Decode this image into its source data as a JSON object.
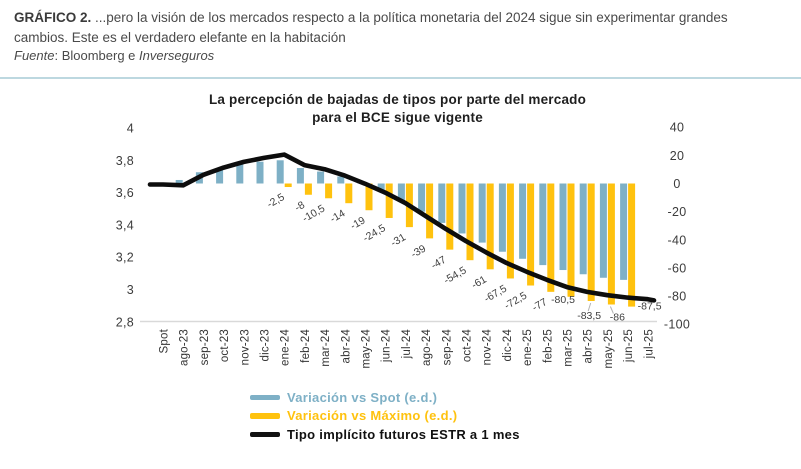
{
  "header": {
    "tag": "GRÁFICO 2.",
    "line1_rest": " ...pero la visión de los mercados respecto a la política monetaria del 2024 sigue sin experimentar grandes",
    "line2": "cambios. Este es el verdadero elefante en la habitación",
    "fuente_label": "Fuente",
    "fuente_mid": ": Bloomberg e ",
    "fuente_source": "Inverseguros"
  },
  "chart_data": {
    "type": "bar",
    "subtype": "combo bar + line, dual axis",
    "title_lines": [
      "La percepción de bajadas de tipos por parte del mercado",
      "para el BCE sigue vigente"
    ],
    "categories": [
      "Spot",
      "ago-23",
      "sep-23",
      "oct-23",
      "nov-23",
      "dic-23",
      "ene-24",
      "feb-24",
      "mar-24",
      "abr-24",
      "may-24",
      "jun-24",
      "jul-24",
      "ago-24",
      "sep-24",
      "oct-24",
      "nov-24",
      "dic-24",
      "ene-25",
      "feb-25",
      "mar-25",
      "abr-25",
      "may-25",
      "jun-25",
      "jul-25"
    ],
    "series": [
      {
        "name": "Variación vs Spot (e.d.)",
        "type": "bar",
        "axis": "right",
        "color": "#7EB0C6",
        "values": [
          null,
          2.5,
          8,
          11,
          13.5,
          15.5,
          16.5,
          11,
          8.5,
          5,
          1,
          -5.5,
          -12,
          -20,
          -28,
          -35.5,
          -42,
          -48.5,
          -53.5,
          -58,
          -61.5,
          -64.5,
          -67,
          -68.5,
          null
        ]
      },
      {
        "name": "Variación vs Máximo (e.d.)",
        "type": "bar",
        "axis": "right",
        "color": "#FFC20E",
        "values": [
          null,
          null,
          null,
          null,
          null,
          null,
          -2.5,
          -8,
          -10.5,
          -14,
          -19,
          -24.5,
          -31,
          -39,
          -47,
          -54.5,
          -61,
          -67.5,
          -72.5,
          -77,
          -80.5,
          -83.5,
          -86,
          -87.5,
          null
        ]
      },
      {
        "name": "Tipo implícito futuros ESTR a 1 mes",
        "type": "line",
        "axis": "left",
        "color": "#0d0d0d",
        "values": [
          3.65,
          3.645,
          3.71,
          3.755,
          3.79,
          3.815,
          3.835,
          3.77,
          3.745,
          3.705,
          3.655,
          3.6,
          3.535,
          3.455,
          3.375,
          3.3,
          3.23,
          3.165,
          3.11,
          3.06,
          3.015,
          2.985,
          2.965,
          2.95,
          2.94
        ]
      }
    ],
    "bar_labels": [
      "-2,5",
      "-8",
      "-10,5",
      "-14",
      "-19",
      "-24,5",
      "-31",
      "-39",
      "-47",
      "-54,5",
      "-61",
      "-67,5",
      "-72,5",
      "-77",
      "-80,5",
      "-83,5",
      "-86",
      "-87,5"
    ],
    "left_axis": {
      "ticks": [
        "4",
        "3,8",
        "3,6",
        "3,4",
        "3,2",
        "3",
        "2,8"
      ],
      "values": [
        4,
        3.8,
        3.6,
        3.4,
        3.2,
        3,
        2.8
      ],
      "range": [
        2.8,
        4
      ]
    },
    "right_axis": {
      "ticks": [
        "40",
        "20",
        "0",
        "-20",
        "-40",
        "-60",
        "-80",
        "-100"
      ],
      "values": [
        40,
        20,
        0,
        -20,
        -40,
        -60,
        -80,
        -100
      ],
      "range": [
        -100,
        40
      ]
    },
    "grid": false,
    "legend_position": "bottom",
    "legend": [
      {
        "label": "Variación vs Spot (e.d.)",
        "color": "#7EB0C6"
      },
      {
        "label": "Variación vs Máximo (e.d.)",
        "color": "#FFC20E"
      },
      {
        "label": "Tipo implícito futuros ESTR a 1 mes",
        "color": "#111111"
      }
    ]
  }
}
